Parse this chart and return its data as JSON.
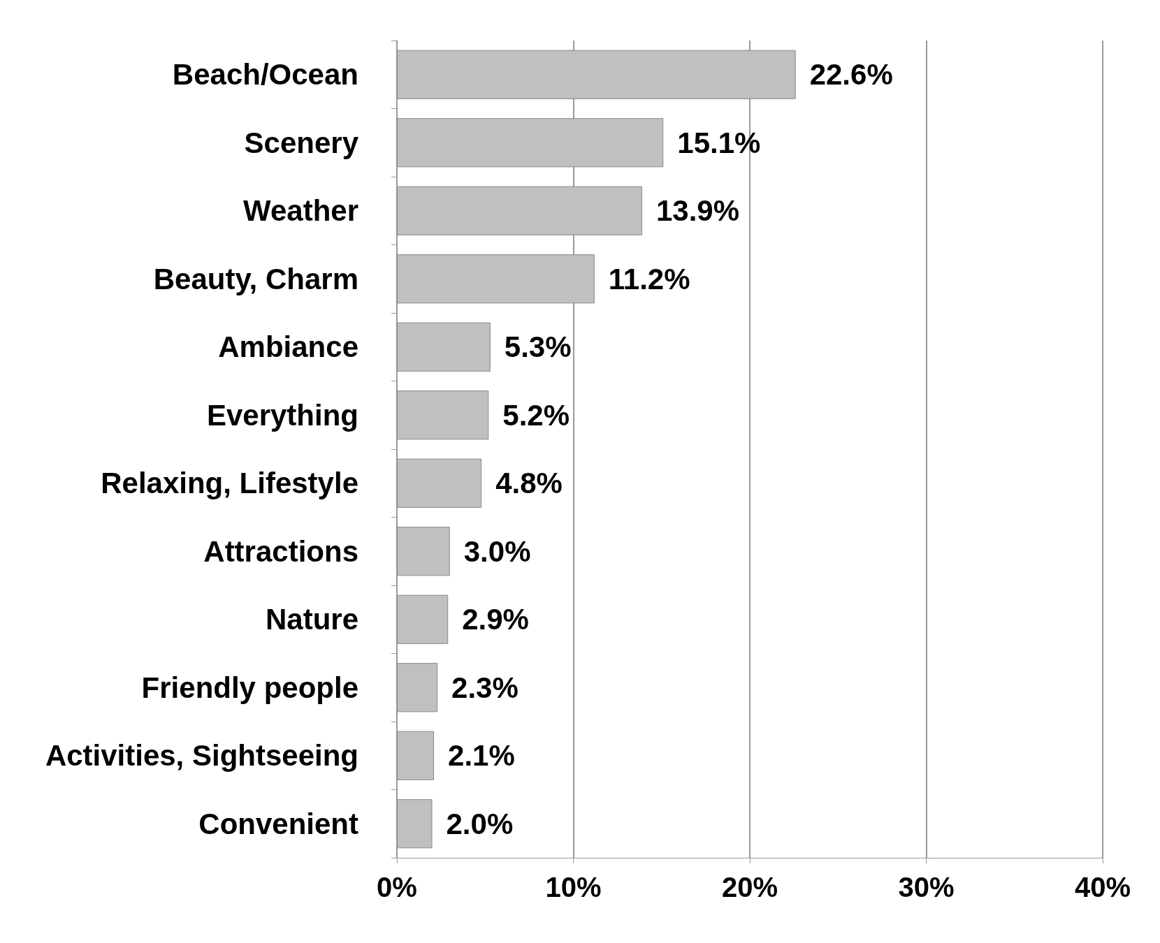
{
  "chart_data": {
    "type": "bar",
    "orientation": "horizontal",
    "categories": [
      "Beach/Ocean",
      "Scenery",
      "Weather",
      "Beauty, Charm",
      "Ambiance",
      "Everything",
      "Relaxing, Lifestyle",
      "Attractions",
      "Nature",
      "Friendly people",
      "Activities, Sightseeing",
      "Convenient"
    ],
    "values": [
      22.6,
      15.1,
      13.9,
      11.2,
      5.3,
      5.2,
      4.8,
      3.0,
      2.9,
      2.3,
      2.1,
      2.0
    ],
    "value_labels": [
      "22.6%",
      "15.1%",
      "13.9%",
      "11.2%",
      "5.3%",
      "5.2%",
      "4.8%",
      "3.0%",
      "2.9%",
      "2.3%",
      "2.1%",
      "2.0%"
    ],
    "color": "#c0c0c0",
    "xlim": [
      0,
      40
    ],
    "xticks": [
      {
        "value": 0,
        "label": "0%"
      },
      {
        "value": 10,
        "label": "10%"
      },
      {
        "value": 20,
        "label": "20%"
      },
      {
        "value": 30,
        "label": "30%"
      },
      {
        "value": 40,
        "label": "40%"
      }
    ],
    "grid": "x"
  }
}
